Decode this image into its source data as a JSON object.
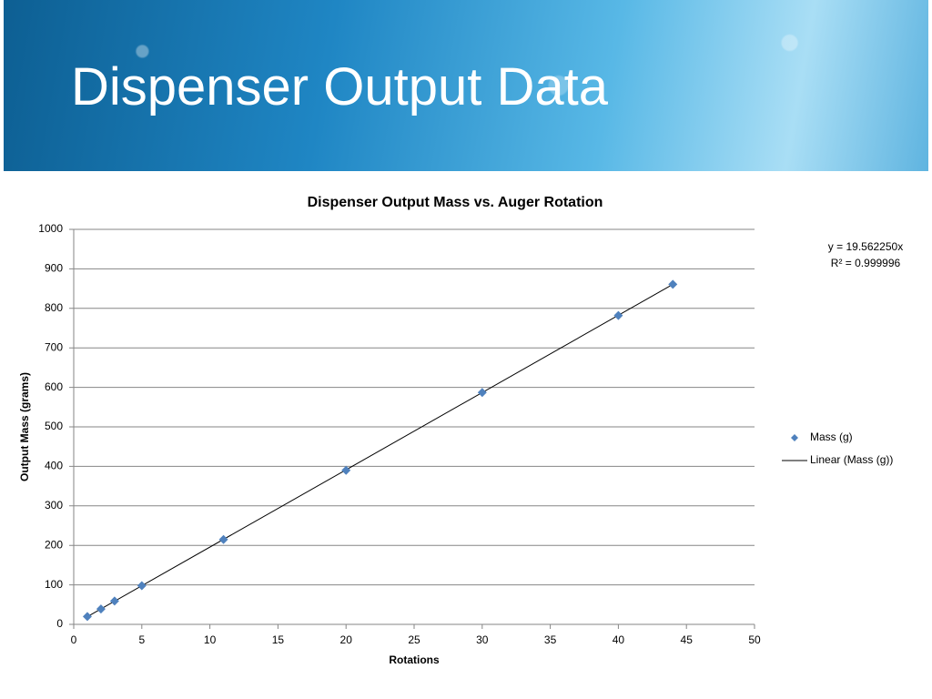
{
  "header": {
    "title": "Dispenser Output Data"
  },
  "chart_data": {
    "type": "scatter",
    "title": "Dispenser Output Mass vs. Auger Rotation",
    "x_label": "Rotations",
    "y_label": "Output Mass (grams)",
    "x": [
      1,
      2,
      3,
      5,
      11,
      20,
      30,
      40,
      44
    ],
    "series": [
      {
        "name": "Mass (g)",
        "color": "#4f81bd",
        "values": [
          20,
          39,
          59,
          98,
          215,
          390,
          587,
          782,
          861
        ]
      }
    ],
    "trendline": {
      "name": "Linear (Mass (g))",
      "color": "#000000",
      "slope": 19.56225,
      "equation": "y = 19.562250x",
      "r_squared": "R² = 0.999996"
    },
    "xlim": [
      0,
      50
    ],
    "xticks": [
      0,
      5,
      10,
      15,
      20,
      25,
      30,
      35,
      40,
      45,
      50
    ],
    "ylim": [
      0,
      1000
    ],
    "yticks": [
      0,
      100,
      200,
      300,
      400,
      500,
      600,
      700,
      800,
      900,
      1000
    ],
    "grid": true,
    "legend": "right"
  }
}
